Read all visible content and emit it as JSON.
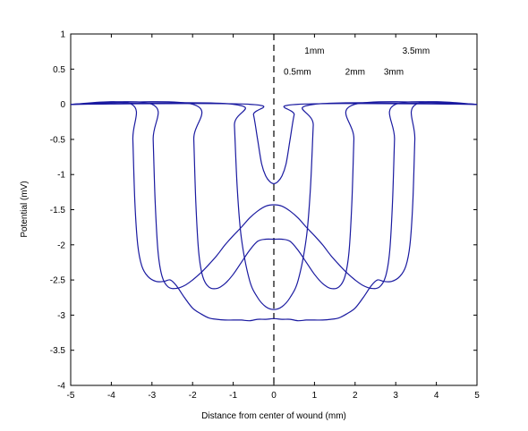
{
  "chart_data": {
    "type": "line",
    "xlabel": "Distance from center of wound (mm)",
    "ylabel": "Potential (mV)",
    "xlim": [
      -5,
      5
    ],
    "ylim": [
      -4,
      1
    ],
    "xticks": [
      "-5",
      "-4",
      "-3",
      "-2",
      "-1",
      "0",
      "1",
      "2",
      "3",
      "4",
      "5"
    ],
    "yticks": [
      "1",
      "0.5",
      "0",
      "-0.5",
      "-1",
      "-1.5",
      "-2",
      "-2.5",
      "-3",
      "-3.5",
      "-4"
    ],
    "grid": false,
    "vertical_reference_line": {
      "x": 0,
      "style": "dashed"
    },
    "line_color": "#1a1aa0",
    "series": [
      {
        "label": "0.5mm",
        "x": [
          -5,
          -0.6,
          -0.5,
          -0.4,
          -0.3,
          -0.2,
          -0.1,
          0,
          0.1,
          0.2,
          0.3,
          0.4,
          0.5,
          0.6,
          5
        ],
        "y": [
          0,
          0,
          -0.15,
          -0.5,
          -0.85,
          -1.02,
          -1.1,
          -1.13,
          -1.1,
          -1.02,
          -0.85,
          -0.5,
          -0.15,
          0,
          0
        ]
      },
      {
        "label": "1mm",
        "x": [
          -5,
          -1.0,
          -0.97,
          -0.9,
          -0.8,
          -0.6,
          -0.4,
          -0.2,
          0,
          0.2,
          0.4,
          0.6,
          0.8,
          0.9,
          0.97,
          1.0,
          5
        ],
        "y": [
          0,
          0,
          -0.3,
          -1.2,
          -1.9,
          -2.5,
          -2.75,
          -2.88,
          -2.92,
          -2.88,
          -2.75,
          -2.5,
          -1.9,
          -1.2,
          -0.3,
          0,
          0
        ]
      },
      {
        "label": "2mm",
        "x": [
          -5,
          -2.0,
          -1.97,
          -1.92,
          -1.85,
          -1.75,
          -1.6,
          -1.4,
          -1.2,
          -1.0,
          -0.8,
          -0.6,
          -0.4,
          -0.2,
          0,
          0.2,
          0.4,
          0.6,
          0.8,
          1.0,
          1.2,
          1.4,
          1.6,
          1.75,
          1.85,
          1.92,
          1.97,
          2.0,
          5
        ],
        "y": [
          0,
          0,
          -0.5,
          -1.4,
          -2.1,
          -2.45,
          -2.6,
          -2.62,
          -2.55,
          -2.42,
          -2.25,
          -2.08,
          -1.95,
          -1.92,
          -1.92,
          -1.92,
          -1.95,
          -2.08,
          -2.25,
          -2.42,
          -2.55,
          -2.62,
          -2.6,
          -2.45,
          -2.1,
          -1.4,
          -0.5,
          0,
          0
        ]
      },
      {
        "label": "3mm",
        "x": [
          -5,
          -3.0,
          -2.97,
          -2.92,
          -2.85,
          -2.75,
          -2.6,
          -2.4,
          -2.2,
          -2.0,
          -1.8,
          -1.6,
          -1.4,
          -1.2,
          -1.0,
          -0.8,
          -0.6,
          -0.4,
          -0.2,
          0,
          0.2,
          0.4,
          0.6,
          0.8,
          1.0,
          1.2,
          1.4,
          1.6,
          1.8,
          2.0,
          2.2,
          2.4,
          2.6,
          2.75,
          2.85,
          2.92,
          2.97,
          3.0,
          5
        ],
        "y": [
          0,
          0,
          -0.5,
          -1.4,
          -2.1,
          -2.45,
          -2.6,
          -2.62,
          -2.58,
          -2.5,
          -2.4,
          -2.28,
          -2.15,
          -2.0,
          -1.87,
          -1.75,
          -1.62,
          -1.52,
          -1.45,
          -1.43,
          -1.45,
          -1.52,
          -1.62,
          -1.75,
          -1.87,
          -2.0,
          -2.15,
          -2.28,
          -2.4,
          -2.5,
          -2.58,
          -2.62,
          -2.6,
          -2.45,
          -2.1,
          -1.4,
          -0.5,
          0,
          0
        ]
      },
      {
        "label": "3.5mm",
        "x": [
          -5,
          -3.5,
          -3.47,
          -3.42,
          -3.35,
          -3.25,
          -3.1,
          -2.9,
          -2.7,
          -2.55,
          -2.4,
          -2.2,
          -2.0,
          -1.8,
          -1.6,
          -1.4,
          -1.2,
          -1.0,
          -0.8,
          -0.6,
          -0.4,
          -0.2,
          0,
          0.2,
          0.4,
          0.6,
          0.8,
          1.0,
          1.2,
          1.4,
          1.6,
          1.8,
          2.0,
          2.2,
          2.4,
          2.55,
          2.7,
          2.9,
          3.1,
          3.25,
          3.35,
          3.42,
          3.47,
          3.5,
          5
        ],
        "y": [
          0,
          0,
          -0.5,
          -1.4,
          -2.0,
          -2.3,
          -2.45,
          -2.52,
          -2.52,
          -2.5,
          -2.58,
          -2.75,
          -2.9,
          -2.98,
          -3.04,
          -3.06,
          -3.07,
          -3.07,
          -3.07,
          -3.08,
          -3.06,
          -3.06,
          -3.05,
          -3.06,
          -3.06,
          -3.08,
          -3.07,
          -3.07,
          -3.07,
          -3.06,
          -3.04,
          -2.98,
          -2.9,
          -2.75,
          -2.58,
          -2.5,
          -2.52,
          -2.52,
          -2.45,
          -2.3,
          -2.0,
          -1.4,
          -0.5,
          0,
          0
        ]
      }
    ],
    "annotations": [
      {
        "text": "1mm",
        "x": 1.0,
        "y": 0.72
      },
      {
        "text": "0.5mm",
        "x": 0.58,
        "y": 0.42
      },
      {
        "text": "2mm",
        "x": 2.0,
        "y": 0.42
      },
      {
        "text": "3mm",
        "x": 2.95,
        "y": 0.42
      },
      {
        "text": "3.5mm",
        "x": 3.5,
        "y": 0.72
      }
    ]
  }
}
